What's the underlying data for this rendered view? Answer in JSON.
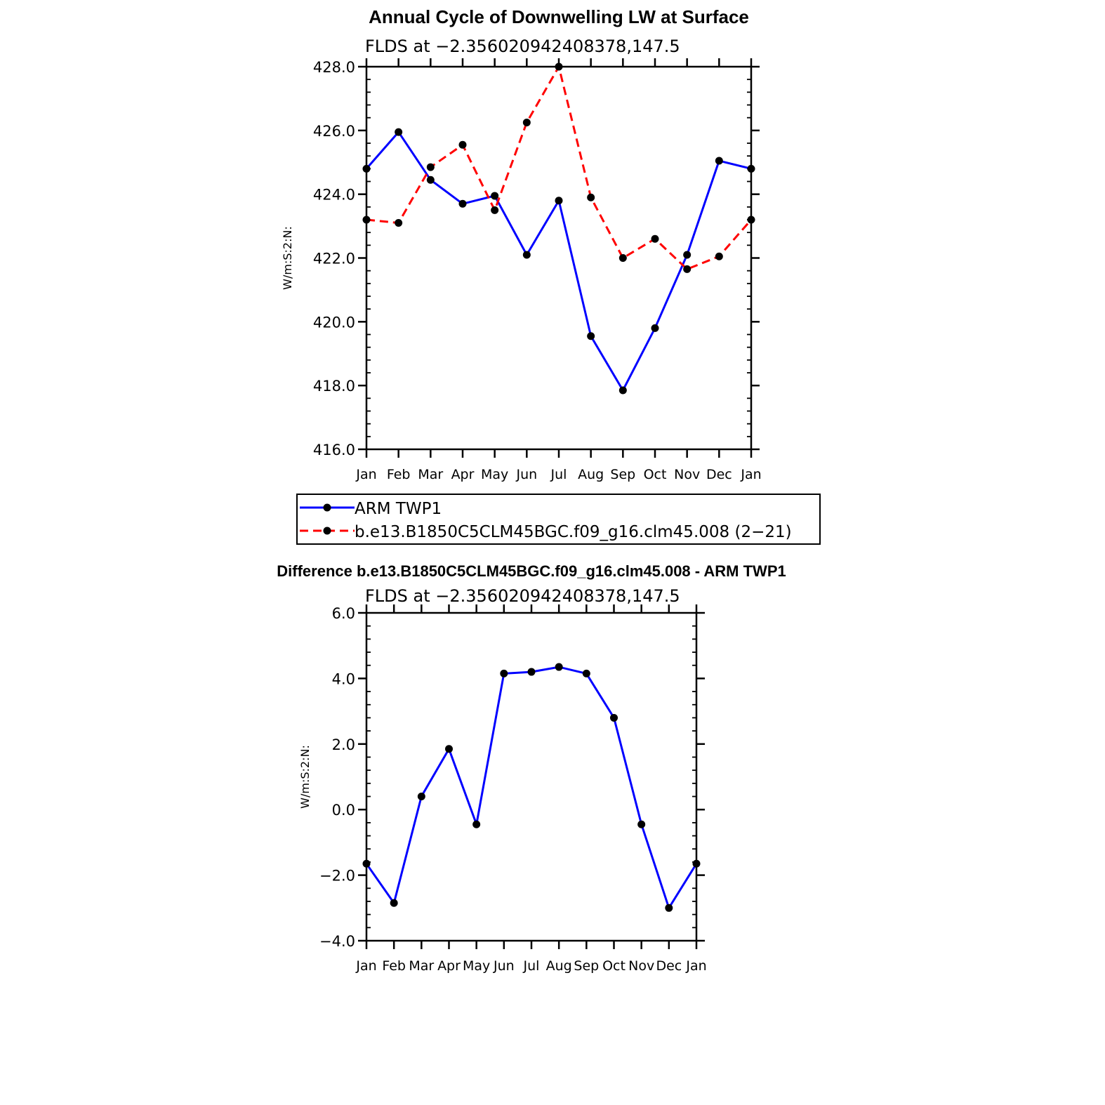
{
  "chart_data": [
    {
      "type": "line",
      "title": "Annual Cycle of Downwelling LW at Surface",
      "subtitle": "FLDS at −2.356020942408378,147.5",
      "ylabel": "W/m:S:2:N:",
      "xlabel": "",
      "categories": [
        "Jan",
        "Feb",
        "Mar",
        "Apr",
        "May",
        "Jun",
        "Jul",
        "Aug",
        "Sep",
        "Oct",
        "Nov",
        "Dec",
        "Jan"
      ],
      "ylim": [
        416.0,
        428.0
      ],
      "yticks": [
        "416.0",
        "418.0",
        "420.0",
        "422.0",
        "424.0",
        "426.0",
        "428.0"
      ],
      "grid": false,
      "legend_position": "bottom",
      "series": [
        {
          "name": "ARM TWP1",
          "color": "#0000ff",
          "dash": "solid",
          "values": [
            424.8,
            425.95,
            424.45,
            423.7,
            423.95,
            422.1,
            423.8,
            419.55,
            417.85,
            419.8,
            422.1,
            425.05,
            424.8
          ]
        },
        {
          "name": "b.e13.B1850C5CLM45BGC.f09_g16.clm45.008 (2−21)",
          "color": "#ff0000",
          "dash": "dashed",
          "values": [
            423.2,
            423.1,
            424.85,
            425.55,
            423.5,
            426.25,
            428.0,
            423.9,
            422.0,
            422.6,
            421.65,
            422.05,
            423.2
          ]
        }
      ]
    },
    {
      "type": "line",
      "title": "Difference b.e13.B1850C5CLM45BGC.f09_g16.clm45.008 - ARM TWP1",
      "subtitle": "FLDS at −2.356020942408378,147.5",
      "ylabel": "W/m:S:2:N:",
      "xlabel": "",
      "categories": [
        "Jan",
        "Feb",
        "Mar",
        "Apr",
        "May",
        "Jun",
        "Jul",
        "Aug",
        "Sep",
        "Oct",
        "Nov",
        "Dec",
        "Jan"
      ],
      "ylim": [
        -4.0,
        6.0
      ],
      "yticks": [
        "−4.0",
        "−2.0",
        "0.0",
        "2.0",
        "4.0",
        "6.0"
      ],
      "grid": false,
      "series": [
        {
          "color": "#0000ff",
          "dash": "solid",
          "values": [
            -1.65,
            -2.85,
            0.4,
            1.85,
            -0.45,
            4.15,
            4.2,
            4.35,
            4.15,
            2.8,
            -0.45,
            -3.0,
            -1.65
          ]
        }
      ]
    }
  ]
}
